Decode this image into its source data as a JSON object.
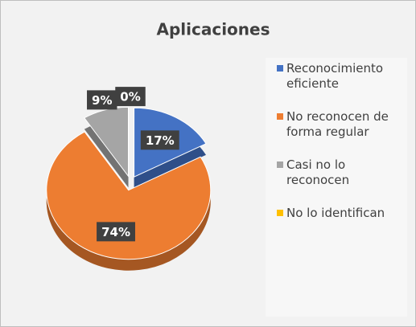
{
  "chart_data": {
    "type": "pie",
    "title": "Aplicaciones",
    "categories": [
      "Reconocimiento eficiente",
      "No reconocen de forma regular",
      "Casi no lo reconocen",
      "No lo identifican"
    ],
    "values": [
      17,
      74,
      9,
      0
    ],
    "value_labels": [
      "17%",
      "74%",
      "9%",
      "0%"
    ],
    "colors": [
      "#4472c4",
      "#ed7d31",
      "#a5a5a5",
      "#ffc000"
    ],
    "legend": "right"
  }
}
